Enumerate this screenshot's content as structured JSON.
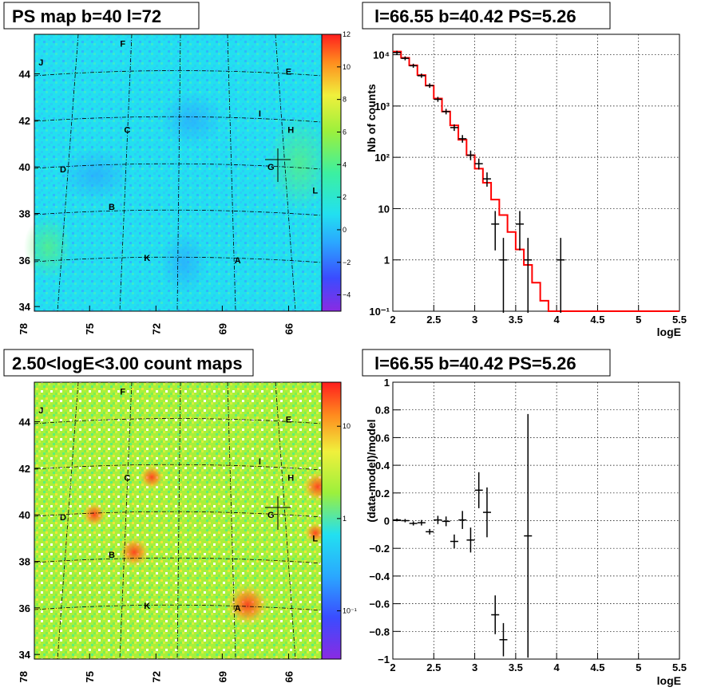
{
  "panels": {
    "ps_map": {
      "title": "PS map b=40 l=72",
      "x_ticks": [
        "78",
        "75",
        "72",
        "69",
        "66"
      ],
      "y_ticks": [
        "44",
        "42",
        "40",
        "38",
        "36",
        "34"
      ],
      "colorbar_ticks": [
        "12",
        "10",
        "8",
        "6",
        "4",
        "2",
        "0",
        "−2",
        "−4"
      ],
      "sources": [
        "J",
        "F",
        "E",
        "I",
        "H",
        "C",
        "G",
        "D",
        "L",
        "B",
        "K",
        "A"
      ]
    },
    "count_map": {
      "title": "2.50<logE<3.00 count maps",
      "x_ticks": [
        "78",
        "75",
        "72",
        "69",
        "66"
      ],
      "y_ticks": [
        "44",
        "42",
        "40",
        "38",
        "36",
        "34"
      ],
      "colorbar_ticks": [
        "10",
        "1",
        "10⁻¹"
      ],
      "sources": [
        "J",
        "F",
        "E",
        "I",
        "H",
        "C",
        "G",
        "D",
        "L",
        "B",
        "K",
        "A"
      ]
    },
    "spectrum": {
      "title": "l=66.55 b=40.42 PS=5.26",
      "xlabel": "logE",
      "ylabel": "Nb of counts",
      "x_ticks": [
        "2",
        "2.5",
        "3",
        "3.5",
        "4",
        "4.5",
        "5",
        "5.5"
      ],
      "y_ticks": [
        "10⁴",
        "10³",
        "10²",
        "10",
        "1",
        "10⁻¹"
      ]
    },
    "residual": {
      "title": "l=66.55 b=40.42 PS=5.26",
      "xlabel": "logE",
      "ylabel": "(data-model)/model",
      "x_ticks": [
        "2",
        "2.5",
        "3",
        "3.5",
        "4",
        "4.5",
        "5",
        "5.5"
      ],
      "y_ticks": [
        "1",
        "0.8",
        "0.6",
        "0.4",
        "0.2",
        "0",
        "−0.2",
        "−0.4",
        "−0.6",
        "−0.8",
        "−1"
      ]
    }
  },
  "colors": {
    "model_line": "#ff0000",
    "data_points": "#000000",
    "ps_background": "#22e0f0",
    "count_background": "#9cf03c"
  },
  "chart_data": [
    {
      "type": "heatmap",
      "title": "PS map b=40 l=72",
      "xlabel": "",
      "ylabel": "",
      "xlim": [
        77.5,
        64.5
      ],
      "ylim": [
        33.8,
        45.7
      ],
      "colorbar_range": [
        -5,
        12
      ],
      "x_ticks": [
        78,
        75,
        72,
        69,
        66
      ],
      "y_ticks": [
        44,
        42,
        40,
        38,
        36,
        34
      ],
      "sources": [
        {
          "label": "J",
          "l": 77.2,
          "b": 44.5
        },
        {
          "label": "F",
          "l": 73.5,
          "b": 45.3
        },
        {
          "label": "E",
          "l": 66.0,
          "b": 44.1
        },
        {
          "label": "I",
          "l": 67.3,
          "b": 42.3
        },
        {
          "label": "H",
          "l": 65.9,
          "b": 41.6
        },
        {
          "label": "C",
          "l": 73.3,
          "b": 41.6
        },
        {
          "label": "G",
          "l": 66.8,
          "b": 40.0
        },
        {
          "label": "D",
          "l": 76.2,
          "b": 39.9
        },
        {
          "label": "L",
          "l": 64.8,
          "b": 39.0
        },
        {
          "label": "B",
          "l": 74.0,
          "b": 38.3
        },
        {
          "label": "K",
          "l": 72.4,
          "b": 36.1
        },
        {
          "label": "A",
          "l": 68.3,
          "b": 36.0
        }
      ]
    },
    {
      "type": "heatmap",
      "title": "2.50<logE<3.00 count maps",
      "xlabel": "",
      "ylabel": "",
      "xlim": [
        77.5,
        64.5
      ],
      "ylim": [
        33.8,
        45.7
      ],
      "colorbar_scale": "log",
      "colorbar_range": [
        0.03,
        30
      ],
      "x_ticks": [
        78,
        75,
        72,
        69,
        66
      ],
      "y_ticks": [
        44,
        42,
        40,
        38,
        36,
        34
      ],
      "hot_spots": [
        "A",
        "B",
        "C",
        "D"
      ]
    },
    {
      "type": "line",
      "title": "l=66.55 b=40.42 PS=5.26",
      "xlabel": "logE",
      "ylabel": "Nb of counts",
      "xlim": [
        2,
        5.5
      ],
      "ylim": [
        0.1,
        25000
      ],
      "yscale": "log",
      "grid": true,
      "series": [
        {
          "kind": "step",
          "edges": [
            2.0,
            2.1,
            2.2,
            2.3,
            2.4,
            2.5,
            2.6,
            2.7,
            2.8,
            2.9,
            3.0,
            3.1,
            3.2,
            3.3,
            3.4,
            3.5,
            3.6,
            3.7,
            3.8,
            3.9,
            4.0,
            5.5
          ],
          "values": [
            11500,
            8700,
            6200,
            4000,
            2500,
            1400,
            780,
            420,
            220,
            110,
            60,
            32,
            15,
            7.5,
            3.5,
            1.6,
            0.8,
            0.36,
            0.16,
            0.1,
            0.1
          ]
        },
        {
          "kind": "points",
          "x": [
            2.05,
            2.15,
            2.25,
            2.35,
            2.45,
            2.55,
            2.65,
            2.75,
            2.85,
            2.95,
            3.05,
            3.15,
            3.25,
            3.35,
            3.55,
            3.65,
            4.05
          ],
          "y": [
            11000,
            8500,
            6100,
            3900,
            2500,
            1350,
            780,
            380,
            230,
            110,
            75,
            38,
            5,
            1,
            5,
            1,
            1
          ]
        }
      ]
    },
    {
      "type": "scatter",
      "title": "l=66.55 b=40.42 PS=5.26",
      "xlabel": "logE",
      "ylabel": "(data-model)/model",
      "xlim": [
        2,
        5.5
      ],
      "ylim": [
        -1,
        1
      ],
      "grid": true,
      "series": [
        {
          "x": [
            2.05,
            2.15,
            2.25,
            2.35,
            2.45,
            2.55,
            2.65,
            2.75,
            2.85,
            2.95,
            3.05,
            3.15,
            3.25,
            3.35,
            3.65
          ],
          "y": [
            0.005,
            0.0,
            -0.02,
            -0.015,
            -0.08,
            0.005,
            -0.005,
            -0.15,
            0.005,
            -0.14,
            0.22,
            0.06,
            -0.68,
            -0.86,
            -0.11
          ],
          "err": [
            0.01,
            0.012,
            0.015,
            0.02,
            0.02,
            0.03,
            0.035,
            0.05,
            0.065,
            0.09,
            0.13,
            0.18,
            0.14,
            0.12,
            0.88
          ]
        }
      ]
    }
  ]
}
